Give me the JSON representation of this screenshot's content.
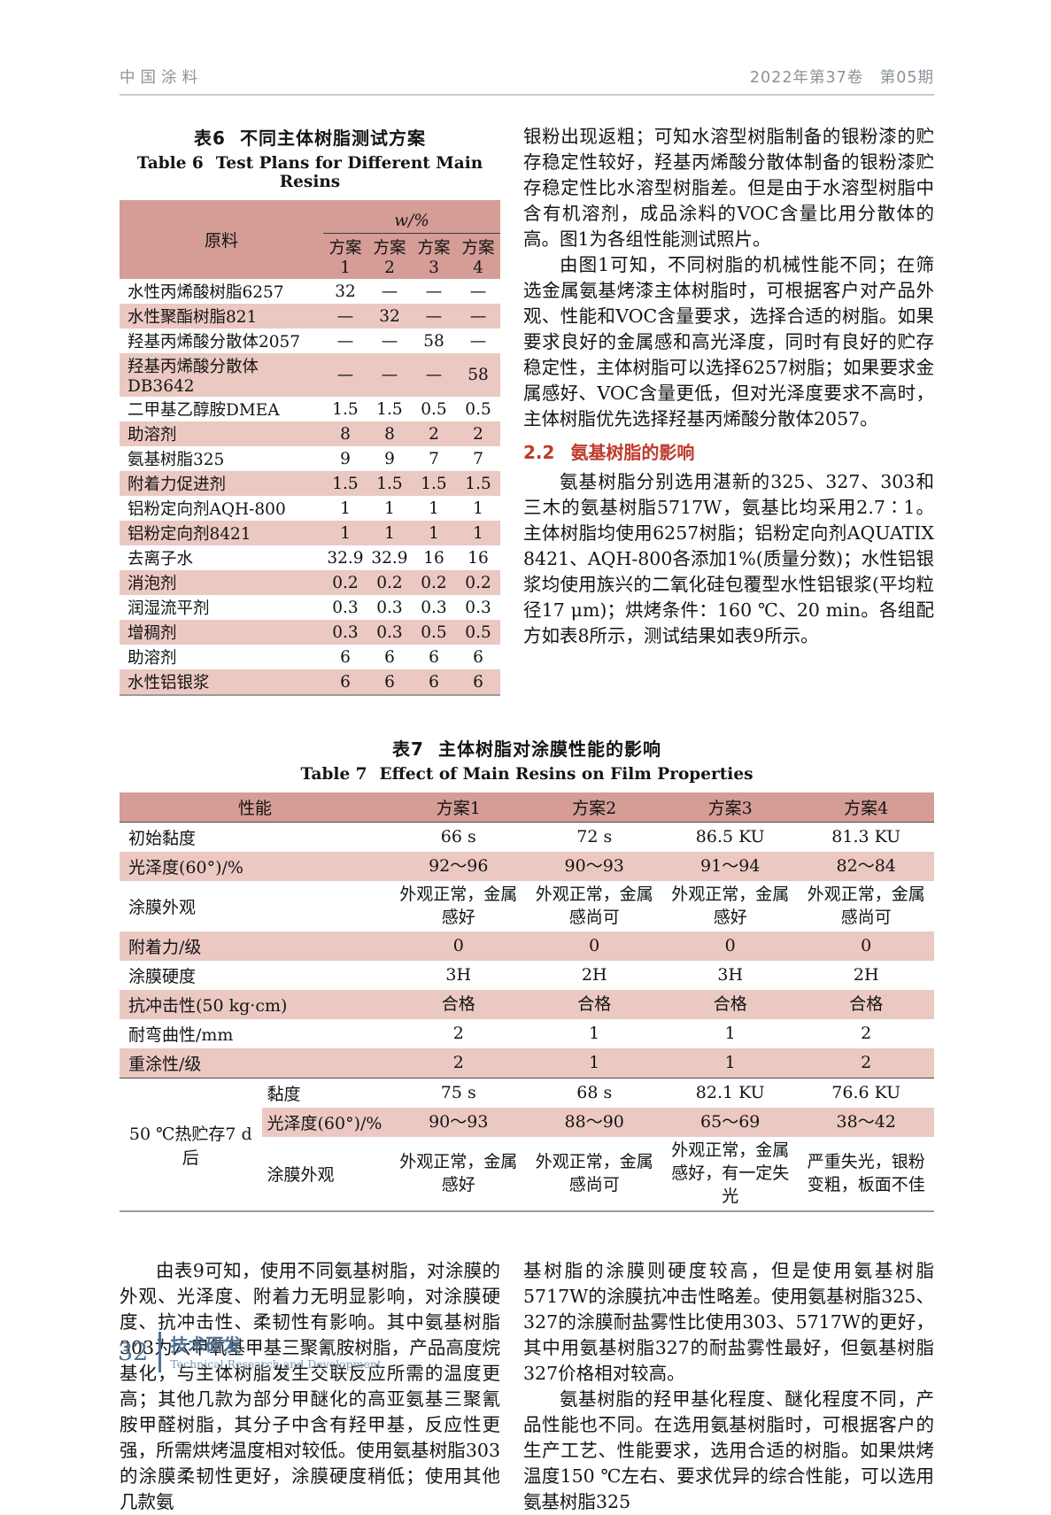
{
  "page_header": {
    "journal": "中国涂料",
    "issue": "2022年第37卷　第05期"
  },
  "table6": {
    "title_zh_num": "表6",
    "title_zh": "不同主体树脂测试方案",
    "title_en_num": "Table 6",
    "title_en": "Test Plans for Different Main Resins",
    "col_group_label": "原料",
    "span_label": "w/%",
    "plan_headers": [
      "方案1",
      "方案2",
      "方案3",
      "方案4"
    ],
    "rows": [
      {
        "label": "水性丙烯酸树脂6257",
        "values": [
          "32",
          "—",
          "—",
          "—"
        ]
      },
      {
        "label": "水性聚酯树脂821",
        "values": [
          "—",
          "32",
          "—",
          "—"
        ]
      },
      {
        "label": "羟基丙烯酸分散体2057",
        "values": [
          "—",
          "—",
          "58",
          "—"
        ]
      },
      {
        "label": "羟基丙烯酸分散体DB3642",
        "values": [
          "—",
          "—",
          "—",
          "58"
        ]
      },
      {
        "label": "二甲基乙醇胺DMEA",
        "values": [
          "1.5",
          "1.5",
          "0.5",
          "0.5"
        ]
      },
      {
        "label": "助溶剂",
        "values": [
          "8",
          "8",
          "2",
          "2"
        ]
      },
      {
        "label": "氨基树脂325",
        "values": [
          "9",
          "9",
          "7",
          "7"
        ]
      },
      {
        "label": "附着力促进剂",
        "values": [
          "1.5",
          "1.5",
          "1.5",
          "1.5"
        ]
      },
      {
        "label": "铝粉定向剂AQH-800",
        "values": [
          "1",
          "1",
          "1",
          "1"
        ]
      },
      {
        "label": "铝粉定向剂8421",
        "values": [
          "1",
          "1",
          "1",
          "1"
        ]
      },
      {
        "label": "去离子水",
        "values": [
          "32.9",
          "32.9",
          "16",
          "16"
        ]
      },
      {
        "label": "消泡剂",
        "values": [
          "0.2",
          "0.2",
          "0.2",
          "0.2"
        ]
      },
      {
        "label": "润湿流平剂",
        "values": [
          "0.3",
          "0.3",
          "0.3",
          "0.3"
        ]
      },
      {
        "label": "增稠剂",
        "values": [
          "0.3",
          "0.3",
          "0.5",
          "0.5"
        ]
      },
      {
        "label": "助溶剂",
        "values": [
          "6",
          "6",
          "6",
          "6"
        ]
      },
      {
        "label": "水性铝银浆",
        "values": [
          "6",
          "6",
          "6",
          "6"
        ]
      }
    ]
  },
  "right_column": {
    "para1": "银粉出现返粗；可知水溶型树脂制备的银粉漆的贮存稳定性较好，羟基丙烯酸分散体制备的银粉漆贮存稳定性比水溶型树脂差。但是由于水溶型树脂中含有机溶剂，成品涂料的VOC含量比用分散体的高。图1为各组性能测试照片。",
    "para2": "由图1可知，不同树脂的机械性能不同；在筛选金属氨基烤漆主体树脂时，可根据客户对产品外观、性能和VOC含量要求，选择合适的树脂。如果要求良好的金属感和高光泽度，同时有良好的贮存稳定性，主体树脂可以选择6257树脂；如果要求金属感好、VOC含量更低，但对光泽度要求不高时，主体树脂优先选择羟基丙烯酸分散体2057。",
    "section_number": "2.2",
    "section_title": "氨基树脂的影响",
    "para3": "氨基树脂分别选用湛新的325、327、303和三木的氨基树脂5717W，氨基比均采用2.7∶1。主体树脂均使用6257树脂；铝粉定向剂AQUATIX 8421、AQH-800各添加1%(质量分数)；水性铝银浆均使用族兴的二氧化硅包覆型水性铝银浆(平均粒径17 μm)；烘烤条件：160 ℃、20 min。各组配方如表8所示，测试结果如表9所示。"
  },
  "table7": {
    "title_zh_num": "表7",
    "title_zh": "主体树脂对涂膜性能的影响",
    "title_en_num": "Table 7",
    "title_en": "Effect of Main Resins on Film Properties",
    "header_property": "性能",
    "plan_headers": [
      "方案1",
      "方案2",
      "方案3",
      "方案4"
    ],
    "rows": [
      {
        "label": "初始黏度",
        "values": [
          "66 s",
          "72 s",
          "86.5 KU",
          "81.3 KU"
        ]
      },
      {
        "label": "光泽度(60°)/%",
        "values": [
          "92～96",
          "90～93",
          "91～94",
          "82～84"
        ]
      },
      {
        "label": "涂膜外观",
        "values": [
          "外观正常，金属感好",
          "外观正常，金属感尚可",
          "外观正常，金属感好",
          "外观正常，金属感尚可"
        ]
      },
      {
        "label": "附着力/级",
        "values": [
          "0",
          "0",
          "0",
          "0"
        ]
      },
      {
        "label": "涂膜硬度",
        "values": [
          "3H",
          "2H",
          "3H",
          "2H"
        ]
      },
      {
        "label": "抗冲击性(50 kg·cm)",
        "values": [
          "合格",
          "合格",
          "合格",
          "合格"
        ]
      },
      {
        "label": "耐弯曲性/mm",
        "values": [
          "2",
          "1",
          "1",
          "2"
        ]
      },
      {
        "label": "重涂性/级",
        "values": [
          "2",
          "1",
          "1",
          "2"
        ]
      }
    ],
    "group": {
      "label": "50 ℃热贮存7 d后",
      "rows": [
        {
          "label": "黏度",
          "values": [
            "75 s",
            "68 s",
            "82.1 KU",
            "76.6 KU"
          ]
        },
        {
          "label": "光泽度(60°)/%",
          "values": [
            "90～93",
            "88～90",
            "65～69",
            "38～42"
          ]
        },
        {
          "label": "涂膜外观",
          "values": [
            "外观正常，金属感好",
            "外观正常，金属感尚可",
            "外观正常，金属感好，有一定失光",
            "严重失光，银粉变粗，板面不佳"
          ]
        }
      ]
    }
  },
  "bottom_left": {
    "para1": "由表9可知，使用不同氨基树脂，对涂膜的外观、光泽度、附着力无明显影响，对涂膜硬度、抗冲击性、柔韧性有影响。其中氨基树脂303为六甲氧基甲基三聚氰胺树脂，产品高度烷基化，与主体树脂发生交联反应所需的温度更高；其他几款为部分甲醚化的高亚氨基三聚氰胺甲醛树脂，其分子中含有羟甲基，反应性更强，所需烘烤温度相对较低。使用氨基树脂303的涂膜柔韧性更好，涂膜硬度稍低；使用其他几款氨"
  },
  "bottom_right": {
    "para1": "基树脂的涂膜则硬度较高，但是使用氨基树脂5717W的涂膜抗冲击性略差。使用氨基树脂325、327的涂膜耐盐雾性比使用303、5717W的更好，其中用氨基树脂327的耐盐雾性最好，但氨基树脂327价格相对较高。",
    "para2": "氨基树脂的羟甲基化程度、醚化程度不同，产品性能也不同。在选用氨基树脂时，可根据客户的生产工艺、性能要求，选用合适的树脂。如果烘烤温度150 ℃左右、要求优异的综合性能，可以选用氨基树脂325"
  },
  "footer": {
    "page_number": "32",
    "section_zh": "技术研发",
    "section_en": "Technical Research and Development"
  },
  "colors": {
    "table_header_pink": "#d59d96",
    "table_row_pink": "#ebc8c2",
    "section_heading_red": "#bf3a2c",
    "footer_blue": "#4e7093",
    "header_gray": "#8b9399"
  }
}
